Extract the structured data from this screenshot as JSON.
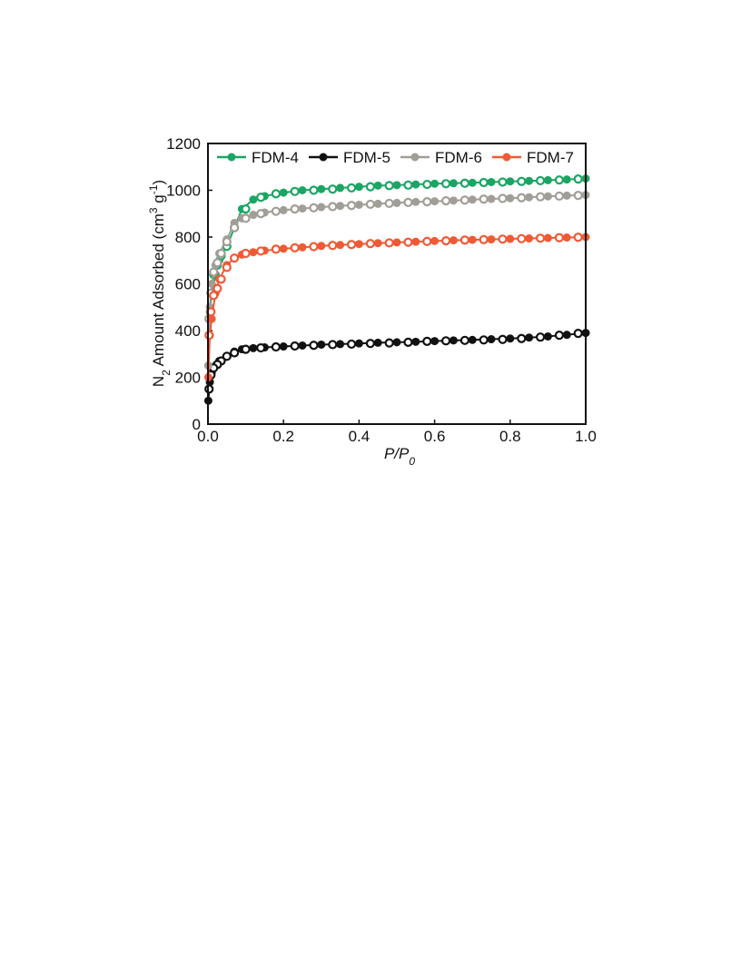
{
  "chart_data": {
    "type": "scatter",
    "x_label": [
      "P/P",
      "0"
    ],
    "y_label": [
      "N",
      "2",
      " Amount Adsorbed (cm",
      "3",
      " g",
      "-1",
      ")"
    ],
    "xlim": [
      0,
      1
    ],
    "ylim": [
      0,
      1200
    ],
    "xticks": [
      {
        "value": 0,
        "label": "0.0"
      },
      0.2,
      0.4,
      0.6,
      0.8,
      {
        "value": 1,
        "label": "1.0"
      }
    ],
    "yticks": [
      0,
      200,
      400,
      600,
      800,
      1000,
      1200
    ],
    "legend": "top",
    "x": [
      0.001,
      0.005,
      0.01,
      0.02,
      0.03,
      0.05,
      0.07,
      0.09,
      0.12,
      0.15,
      0.2,
      0.25,
      0.3,
      0.35,
      0.4,
      0.45,
      0.5,
      0.55,
      0.6,
      0.65,
      0.7,
      0.75,
      0.8,
      0.85,
      0.9,
      0.95,
      1.0
    ],
    "x_desorption": [
      0.98,
      0.93,
      0.88,
      0.83,
      0.78,
      0.73,
      0.68,
      0.63,
      0.58,
      0.53,
      0.48,
      0.43,
      0.38,
      0.33,
      0.28,
      0.23,
      0.18,
      0.14,
      0.1,
      0.07,
      0.05,
      0.035,
      0.025,
      0.015,
      0.008,
      0.003
    ],
    "series": [
      {
        "name": "FDM-4",
        "color": "#1aa564",
        "values": [
          250,
          480,
          560,
          640,
          700,
          760,
          840,
          920,
          960,
          975,
          990,
          1000,
          1005,
          1010,
          1015,
          1020,
          1022,
          1025,
          1028,
          1030,
          1032,
          1035,
          1038,
          1040,
          1043,
          1046,
          1050
        ],
        "desorption": [
          1048,
          1044,
          1041,
          1038,
          1035,
          1033,
          1030,
          1028,
          1025,
          1022,
          1020,
          1015,
          1010,
          1005,
          1000,
          995,
          985,
          970,
          920,
          840,
          760,
          720,
          680,
          640,
          560,
          450
        ]
      },
      {
        "name": "FDM-5",
        "color": "#111111",
        "values": [
          100,
          180,
          220,
          250,
          270,
          290,
          310,
          320,
          325,
          328,
          332,
          336,
          340,
          342,
          345,
          348,
          350,
          352,
          355,
          358,
          360,
          363,
          366,
          370,
          375,
          382,
          390
        ],
        "desorption": [
          388,
          380,
          372,
          366,
          362,
          360,
          358,
          356,
          354,
          350,
          347,
          345,
          342,
          340,
          337,
          334,
          330,
          326,
          320,
          305,
          290,
          270,
          255,
          240,
          210,
          150
        ]
      },
      {
        "name": "FDM-6",
        "color": "#a19d97",
        "values": [
          250,
          500,
          600,
          680,
          730,
          790,
          860,
          880,
          895,
          905,
          915,
          922,
          928,
          933,
          938,
          942,
          946,
          950,
          953,
          956,
          960,
          963,
          966,
          970,
          974,
          977,
          980
        ],
        "desorption": [
          978,
          975,
          972,
          968,
          965,
          962,
          958,
          955,
          951,
          948,
          944,
          940,
          935,
          930,
          925,
          920,
          910,
          900,
          880,
          840,
          780,
          730,
          690,
          650,
          560,
          450
        ]
      },
      {
        "name": "FDM-7",
        "color": "#ee5a35",
        "values": [
          200,
          380,
          450,
          560,
          620,
          680,
          710,
          725,
          735,
          742,
          750,
          756,
          762,
          766,
          770,
          774,
          777,
          780,
          783,
          786,
          788,
          790,
          792,
          794,
          796,
          798,
          800
        ],
        "desorption": [
          799,
          797,
          795,
          793,
          791,
          789,
          787,
          784,
          781,
          778,
          775,
          772,
          768,
          764,
          759,
          754,
          748,
          740,
          730,
          710,
          670,
          620,
          580,
          550,
          480,
          380
        ]
      }
    ]
  }
}
